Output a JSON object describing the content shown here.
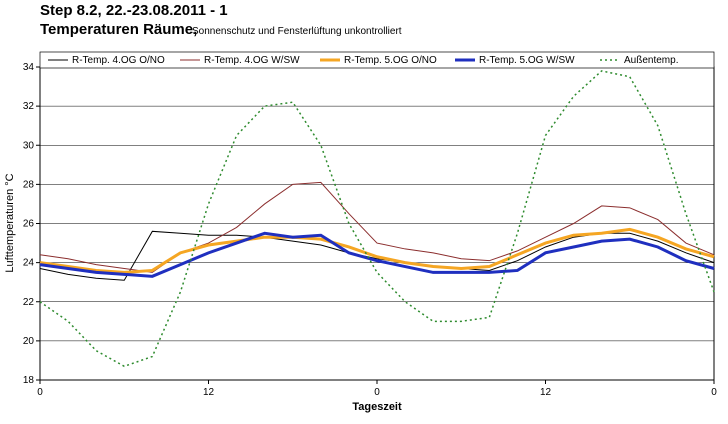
{
  "chart_data": {
    "type": "line",
    "title": "Step 8.2, 22.-23.08.2011 - 1",
    "subtitle": "Temperaturen Räume,",
    "note": "Sonnenschutz und Fensterlüftung unkontrolliert",
    "x_label": "Tageszeit",
    "y_label": "Lufttemperaturen  °C",
    "x": [
      0,
      2,
      4,
      6,
      8,
      10,
      12,
      14,
      16,
      18,
      20,
      22,
      24,
      26,
      28,
      30,
      32,
      34,
      36,
      38,
      40,
      42,
      44,
      46,
      48
    ],
    "xlim": [
      0,
      48
    ],
    "xticks": [
      0,
      12,
      {
        "value": 24,
        "label": "0"
      },
      {
        "value": 36,
        "label": "12"
      },
      {
        "value": 48,
        "label": "0"
      }
    ],
    "ylim": [
      18,
      34
    ],
    "yticks": [
      18,
      20,
      22,
      24,
      26,
      28,
      30,
      32,
      34
    ],
    "grid": true,
    "series": [
      {
        "name": "R-Temp. 4.OG O/NO",
        "color": "#000000",
        "values": [
          23.7,
          23.4,
          23.2,
          23.1,
          25.6,
          25.5,
          25.4,
          25.4,
          25.3,
          25.1,
          24.9,
          24.5,
          24.2,
          24.0,
          23.8,
          23.7,
          23.6,
          24.1,
          24.8,
          25.3,
          25.5,
          25.5,
          25.1,
          24.5,
          24.0
        ]
      },
      {
        "name": "R-Temp. 4.OG  W/SW",
        "color": "#8b2e2e",
        "values": [
          24.4,
          24.2,
          23.9,
          23.7,
          23.5,
          24.5,
          25.0,
          25.8,
          27.0,
          28.0,
          28.1,
          26.5,
          25.0,
          24.7,
          24.5,
          24.2,
          24.1,
          24.6,
          25.3,
          26.0,
          26.9,
          26.8,
          26.2,
          25.0,
          24.4
        ]
      },
      {
        "name": "R-Temp. 5.OG  O/NO",
        "color": "#f5a623",
        "values": [
          24.0,
          23.8,
          23.6,
          23.5,
          23.6,
          24.5,
          24.9,
          25.1,
          25.3,
          25.3,
          25.2,
          24.8,
          24.3,
          24.0,
          23.8,
          23.7,
          23.8,
          24.4,
          25.0,
          25.4,
          25.5,
          25.7,
          25.3,
          24.7,
          24.3
        ]
      },
      {
        "name": "R-Temp. 5.OG  W/SW",
        "color": "#1f2fbf",
        "values": [
          23.9,
          23.7,
          23.5,
          23.4,
          23.3,
          23.9,
          24.5,
          25.0,
          25.5,
          25.3,
          25.4,
          24.5,
          24.1,
          23.8,
          23.5,
          23.5,
          23.5,
          23.6,
          24.5,
          24.8,
          25.1,
          25.2,
          24.8,
          24.1,
          23.7
        ]
      },
      {
        "name": "Außentemp.",
        "color": "#2e8b2e",
        "values": [
          22.0,
          21.0,
          19.5,
          18.7,
          19.2,
          22.5,
          27.0,
          30.5,
          32.0,
          32.2,
          30.0,
          26.0,
          23.5,
          22.0,
          21.0,
          21.0,
          21.2,
          25.5,
          30.5,
          32.5,
          33.8,
          33.5,
          31.0,
          26.5,
          22.5
        ]
      }
    ]
  }
}
